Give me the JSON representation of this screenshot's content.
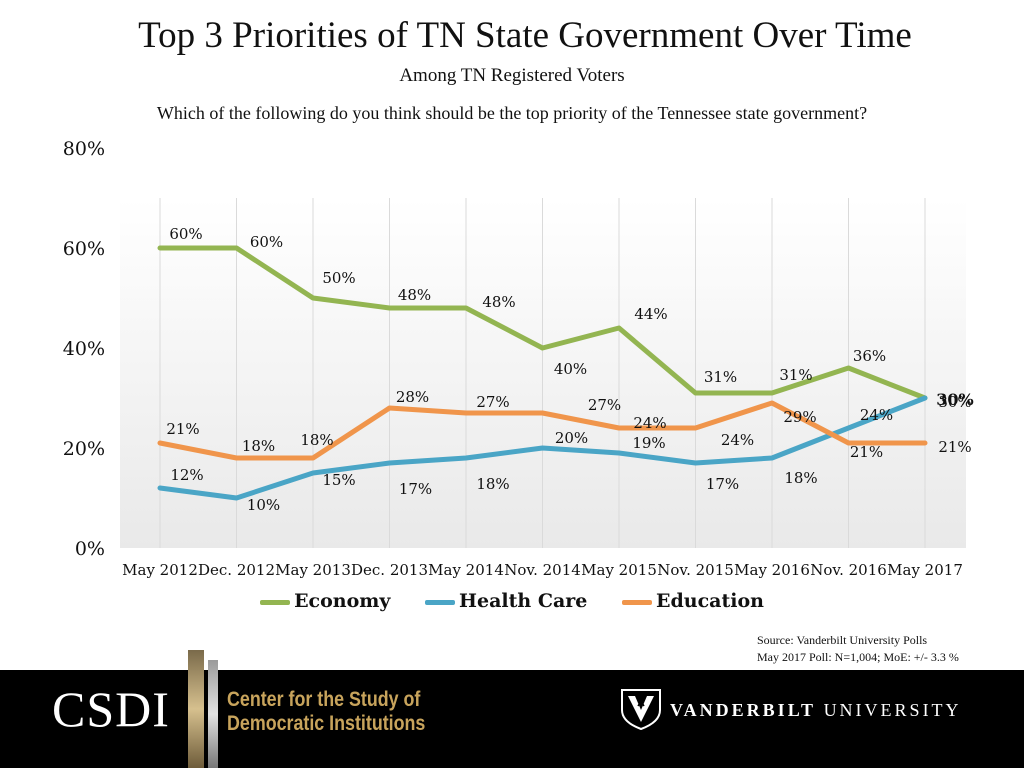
{
  "header": {
    "title": "Top 3 Priorities of TN State Government Over Time",
    "subtitle": "Among TN Registered Voters",
    "question": "Which of the following do you think should be the top priority of the Tennessee state government?"
  },
  "chart_data": {
    "type": "line",
    "title": "Top 3 Priorities of TN State Government Over Time",
    "xlabel": "",
    "ylabel": "",
    "ylim": [
      0,
      80
    ],
    "yticks": [
      "0%",
      "20%",
      "40%",
      "60%",
      "80%"
    ],
    "categories": [
      "May 2012",
      "Dec. 2012",
      "May 2013",
      "Dec. 2013",
      "May 2014",
      "Nov. 2014",
      "May 2015",
      "Nov. 2015",
      "May 2016",
      "Nov. 2016",
      "May 2017"
    ],
    "series": [
      {
        "name": "Economy",
        "color": "#93b551",
        "values": [
          60,
          60,
          50,
          48,
          48,
          40,
          44,
          31,
          31,
          36,
          30
        ],
        "labels": [
          "60%",
          "60%",
          "50%",
          "48%",
          "48%",
          "40%",
          "44%",
          "31%",
          "31%",
          "36%",
          "30%"
        ]
      },
      {
        "name": "Health Care",
        "color": "#4aa5c6",
        "values": [
          12,
          10,
          15,
          17,
          18,
          20,
          19,
          17,
          18,
          24,
          30
        ],
        "labels": [
          "12%",
          "10%",
          "15%",
          "17%",
          "18%",
          "20%",
          "19%",
          "17%",
          "18%",
          "24%",
          "30%"
        ]
      },
      {
        "name": "Education",
        "color": "#f0954b",
        "values": [
          21,
          18,
          18,
          28,
          27,
          27,
          24,
          24,
          29,
          21,
          21
        ],
        "labels": [
          "21%",
          "18%",
          "18%",
          "28%",
          "27%",
          "27%",
          "24%",
          "24%",
          "29%",
          "21%",
          "21%"
        ]
      }
    ],
    "legend": "bottom"
  },
  "source": {
    "line1": "Source: Vanderbilt University Polls",
    "line2": "May 2017 Poll: N=1,004; MoE: +/- 3.3 %"
  },
  "footer": {
    "csdi": "CSDI",
    "center_line1": "Center for the Study of",
    "center_line2": "Democratic Institutions",
    "vu_bold": "VANDERBILT",
    "vu_rest": " UNIVERSITY",
    "colors": {
      "background": "#000000",
      "gold": "#c8a45c"
    }
  }
}
